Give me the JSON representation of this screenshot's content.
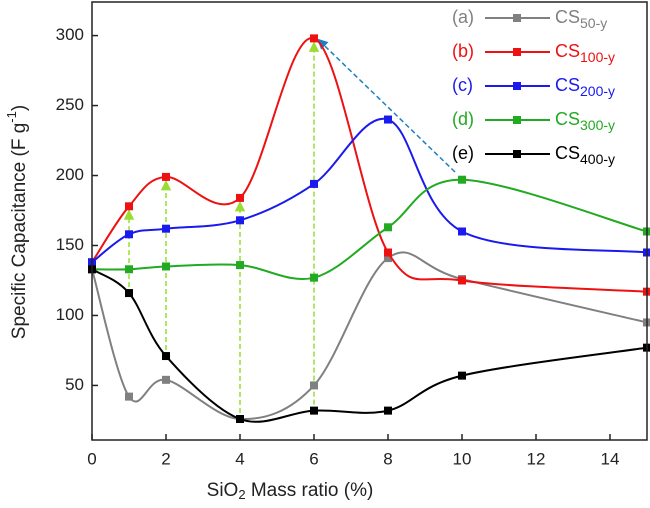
{
  "chart_data": {
    "type": "line",
    "x": [
      0,
      1,
      2,
      4,
      6,
      8,
      10,
      15
    ],
    "xlim": [
      0,
      15
    ],
    "xticks": [
      0,
      2,
      4,
      6,
      8,
      10,
      12,
      14
    ],
    "ylim": [
      11,
      324
    ],
    "yticks": [
      50,
      100,
      150,
      200,
      250,
      300
    ],
    "x_label": {
      "main": "SiO",
      "sub": "2",
      "rest": " Mass ratio (%)"
    },
    "y_label": {
      "main": "Specific Capacitance (F g",
      "sup": "-1",
      "rest": ")"
    },
    "legend_position": "upper right",
    "series": [
      {
        "tag": "(a)",
        "name": "CS",
        "subscript": "50-y",
        "color": "#808080",
        "values": [
          133,
          42,
          54,
          26,
          50,
          141,
          126,
          95
        ]
      },
      {
        "tag": "(b)",
        "name": "CS",
        "subscript": "100-y",
        "color": "#ee1111",
        "values": [
          138,
          178,
          199,
          184,
          298,
          145,
          125,
          117
        ]
      },
      {
        "tag": "(c)",
        "name": "CS",
        "subscript": "200-y",
        "color": "#1a1aee",
        "values": [
          138,
          158,
          162,
          168,
          194,
          240,
          160,
          145
        ]
      },
      {
        "tag": "(d)",
        "name": "CS",
        "subscript": "300-y",
        "color": "#22aa22",
        "values": [
          133,
          133,
          135,
          136,
          127,
          163,
          197,
          160
        ]
      },
      {
        "tag": "(e)",
        "name": "CS",
        "subscript": "400-y",
        "color": "#000000",
        "values": [
          133,
          116,
          71,
          26,
          32,
          32,
          57,
          77
        ]
      }
    ]
  }
}
